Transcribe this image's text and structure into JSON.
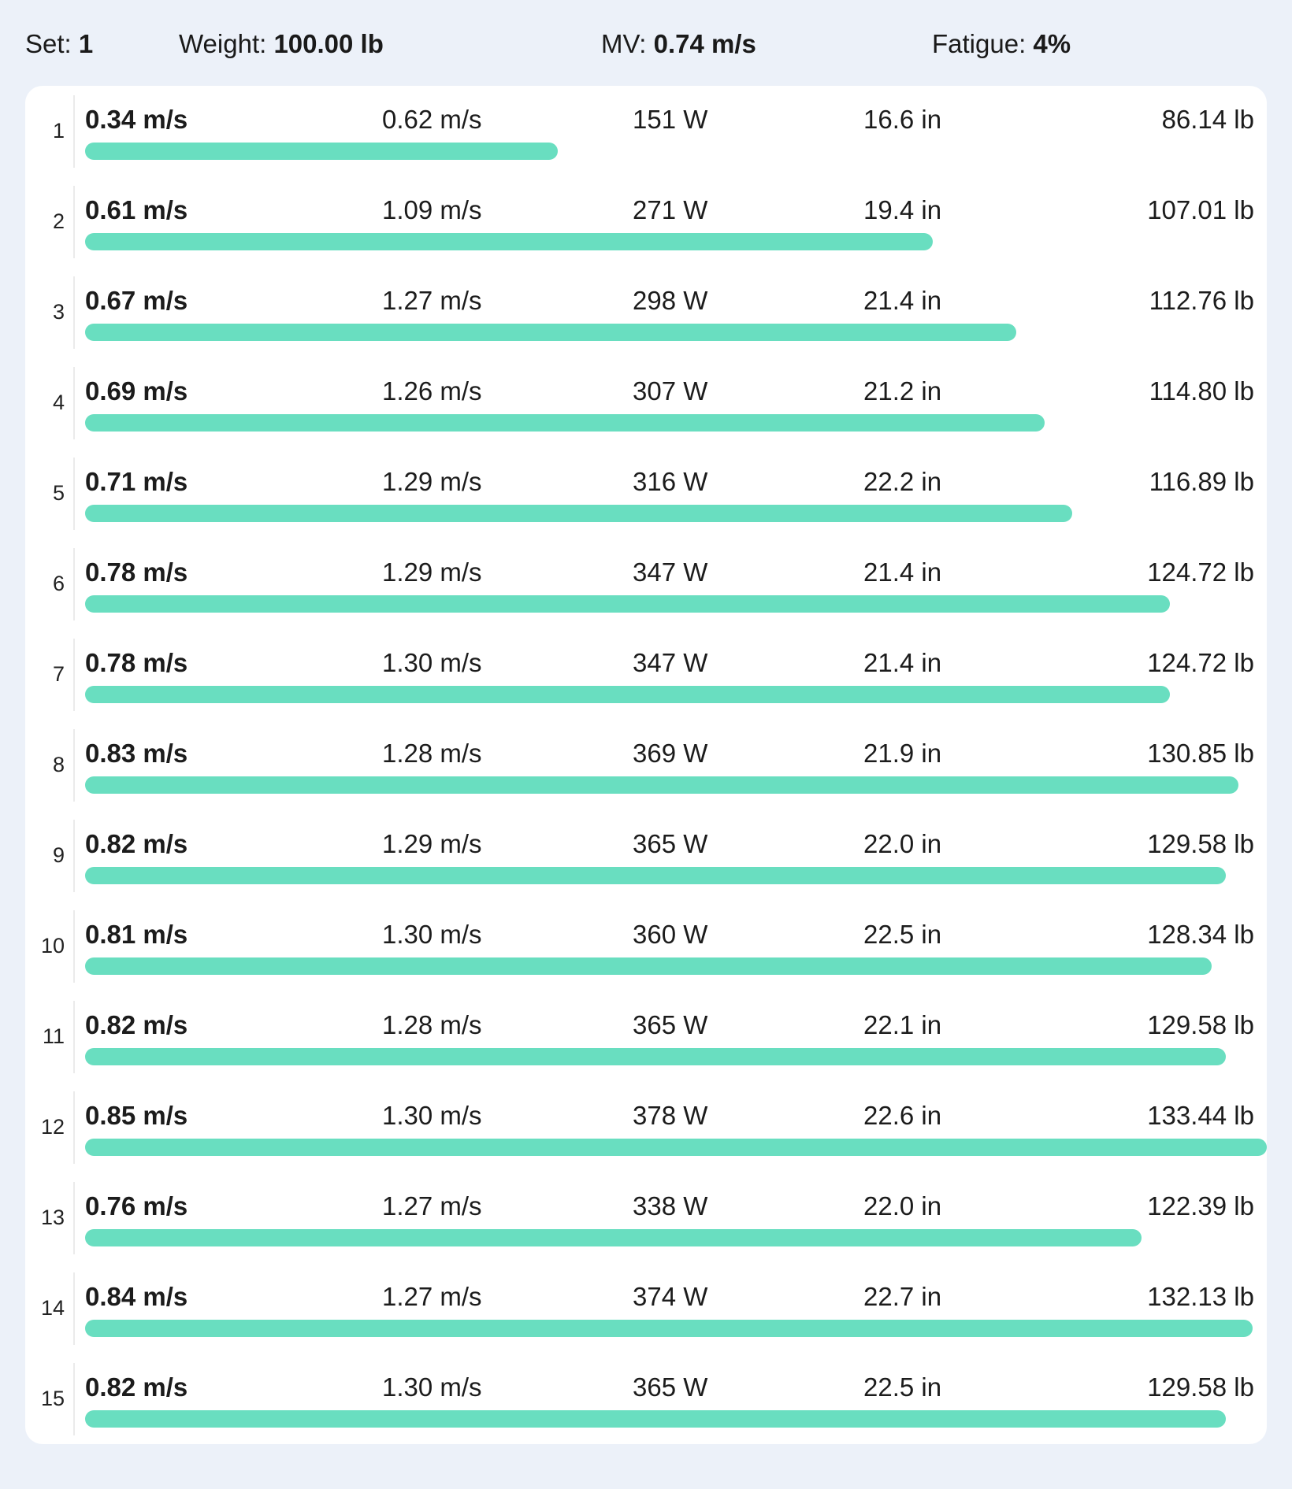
{
  "summary": {
    "set_label": "Set:",
    "set_value": "1",
    "weight_label": "Weight:",
    "weight_value": "100.00 lb",
    "mv_label": "MV:",
    "mv_value": "0.74 m/s",
    "fatigue_label": "Fatigue:",
    "fatigue_value": "4%"
  },
  "colors": {
    "background": "#ecf1f9",
    "card": "#ffffff",
    "bar": "#69dec0"
  },
  "reps": [
    {
      "num": "1",
      "mv": "0.34 m/s",
      "peak": "0.62 m/s",
      "power": "151 W",
      "rom": "16.6 in",
      "force": "86.14 lb",
      "bar_fraction": 0.4
    },
    {
      "num": "2",
      "mv": "0.61 m/s",
      "peak": "1.09 m/s",
      "power": "271 W",
      "rom": "19.4 in",
      "force": "107.01 lb",
      "bar_fraction": 0.717
    },
    {
      "num": "3",
      "mv": "0.67 m/s",
      "peak": "1.27 m/s",
      "power": "298 W",
      "rom": "21.4 in",
      "force": "112.76 lb",
      "bar_fraction": 0.788
    },
    {
      "num": "4",
      "mv": "0.69 m/s",
      "peak": "1.26 m/s",
      "power": "307 W",
      "rom": "21.2 in",
      "force": "114.80 lb",
      "bar_fraction": 0.812
    },
    {
      "num": "5",
      "mv": "0.71 m/s",
      "peak": "1.29 m/s",
      "power": "316 W",
      "rom": "22.2 in",
      "force": "116.89 lb",
      "bar_fraction": 0.835
    },
    {
      "num": "6",
      "mv": "0.78 m/s",
      "peak": "1.29 m/s",
      "power": "347 W",
      "rom": "21.4 in",
      "force": "124.72 lb",
      "bar_fraction": 0.918
    },
    {
      "num": "7",
      "mv": "0.78 m/s",
      "peak": "1.30 m/s",
      "power": "347 W",
      "rom": "21.4 in",
      "force": "124.72 lb",
      "bar_fraction": 0.918
    },
    {
      "num": "8",
      "mv": "0.83 m/s",
      "peak": "1.28 m/s",
      "power": "369 W",
      "rom": "21.9 in",
      "force": "130.85 lb",
      "bar_fraction": 0.976
    },
    {
      "num": "9",
      "mv": "0.82 m/s",
      "peak": "1.29 m/s",
      "power": "365 W",
      "rom": "22.0 in",
      "force": "129.58 lb",
      "bar_fraction": 0.965
    },
    {
      "num": "10",
      "mv": "0.81 m/s",
      "peak": "1.30 m/s",
      "power": "360 W",
      "rom": "22.5 in",
      "force": "128.34 lb",
      "bar_fraction": 0.953
    },
    {
      "num": "11",
      "mv": "0.82 m/s",
      "peak": "1.28 m/s",
      "power": "365 W",
      "rom": "22.1 in",
      "force": "129.58 lb",
      "bar_fraction": 0.965
    },
    {
      "num": "12",
      "mv": "0.85 m/s",
      "peak": "1.30 m/s",
      "power": "378 W",
      "rom": "22.6 in",
      "force": "133.44 lb",
      "bar_fraction": 1.0
    },
    {
      "num": "13",
      "mv": "0.76 m/s",
      "peak": "1.27 m/s",
      "power": "338 W",
      "rom": "22.0 in",
      "force": "122.39 lb",
      "bar_fraction": 0.894
    },
    {
      "num": "14",
      "mv": "0.84 m/s",
      "peak": "1.27 m/s",
      "power": "374 W",
      "rom": "22.7 in",
      "force": "132.13 lb",
      "bar_fraction": 0.988
    },
    {
      "num": "15",
      "mv": "0.82 m/s",
      "peak": "1.30 m/s",
      "power": "365 W",
      "rom": "22.5 in",
      "force": "129.58 lb",
      "bar_fraction": 0.965
    }
  ]
}
